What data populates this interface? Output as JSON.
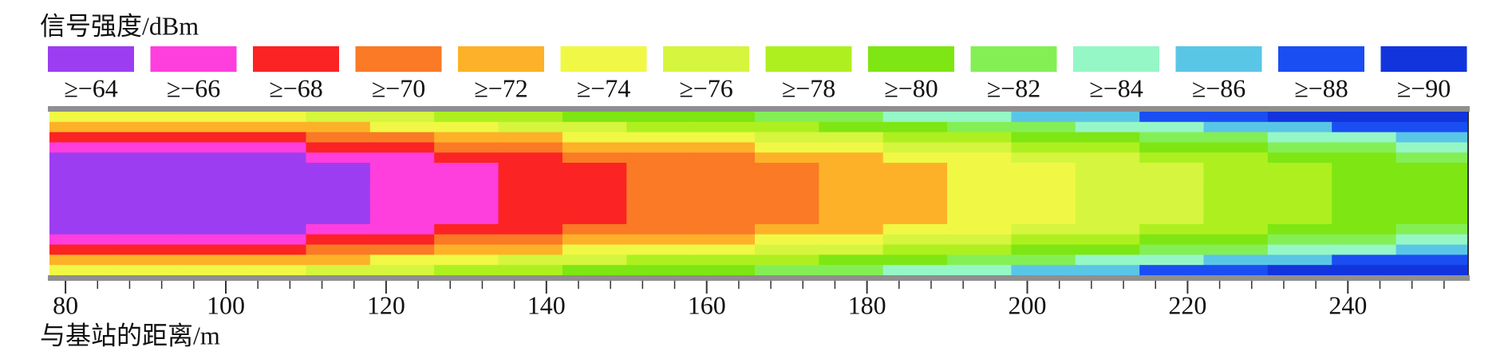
{
  "chart_data": {
    "type": "heatmap",
    "title": "信号强度/dBm",
    "xlabel": "与基站的距离/m",
    "legend": [
      {
        "value": -64,
        "label": "≥−64",
        "color": "#9d3df2"
      },
      {
        "value": -66,
        "label": "≥−66",
        "color": "#ff3ede"
      },
      {
        "value": -68,
        "label": "≥−68",
        "color": "#fb2323"
      },
      {
        "value": -70,
        "label": "≥−70",
        "color": "#fa7a25"
      },
      {
        "value": -72,
        "label": "≥−72",
        "color": "#fdb128"
      },
      {
        "value": -74,
        "label": "≥−74",
        "color": "#f0f845"
      },
      {
        "value": -76,
        "label": "≥−76",
        "color": "#d6f53e"
      },
      {
        "value": -78,
        "label": "≥−78",
        "color": "#aef01f"
      },
      {
        "value": -80,
        "label": "≥−80",
        "color": "#7ee612"
      },
      {
        "value": -82,
        "label": "≥−82",
        "color": "#84ef55"
      },
      {
        "value": -84,
        "label": "≥−84",
        "color": "#95f7c6"
      },
      {
        "value": -86,
        "label": "≥−86",
        "color": "#5ac6e6"
      },
      {
        "value": -88,
        "label": "≥−88",
        "color": "#1a4ef2"
      },
      {
        "value": -90,
        "label": "≥−90",
        "color": "#1234dc"
      }
    ],
    "x": [
      78,
      86,
      94,
      102,
      110,
      118,
      126,
      134,
      142,
      150,
      158,
      166,
      174,
      182,
      190,
      198,
      206,
      214,
      222,
      230,
      238,
      246,
      255
    ],
    "z": [
      [
        -74,
        -74,
        -74,
        -74,
        -76,
        -76,
        -78,
        -78,
        -80,
        -80,
        -80,
        -82,
        -82,
        -84,
        -84,
        -86,
        -86,
        -88,
        -88,
        -90,
        -90,
        -90
      ],
      [
        -72,
        -72,
        -72,
        -72,
        -72,
        -74,
        -74,
        -76,
        -76,
        -78,
        -78,
        -78,
        -80,
        -80,
        -82,
        -82,
        -84,
        -84,
        -86,
        -86,
        -88,
        -88
      ],
      [
        -68,
        -68,
        -68,
        -68,
        -70,
        -70,
        -72,
        -72,
        -74,
        -74,
        -74,
        -76,
        -76,
        -78,
        -78,
        -80,
        -80,
        -82,
        -82,
        -84,
        -84,
        -86
      ],
      [
        -66,
        -66,
        -66,
        -66,
        -68,
        -68,
        -70,
        -70,
        -72,
        -72,
        -72,
        -74,
        -74,
        -76,
        -76,
        -78,
        -78,
        -80,
        -80,
        -82,
        -82,
        -84
      ],
      [
        -64,
        -64,
        -64,
        -64,
        -66,
        -66,
        -68,
        -68,
        -70,
        -70,
        -70,
        -72,
        -72,
        -74,
        -74,
        -76,
        -76,
        -78,
        -78,
        -80,
        -80,
        -82
      ],
      [
        -64,
        -64,
        -64,
        -64,
        -64,
        -66,
        -66,
        -68,
        -68,
        -70,
        -70,
        -70,
        -72,
        -72,
        -74,
        -74,
        -76,
        -76,
        -78,
        -78,
        -80,
        -80
      ],
      [
        -64,
        -64,
        -64,
        -64,
        -64,
        -66,
        -66,
        -68,
        -68,
        -70,
        -70,
        -70,
        -72,
        -72,
        -74,
        -74,
        -76,
        -76,
        -78,
        -78,
        -80,
        -80
      ],
      [
        -64,
        -64,
        -64,
        -64,
        -64,
        -66,
        -66,
        -68,
        -68,
        -70,
        -70,
        -70,
        -72,
        -72,
        -74,
        -74,
        -76,
        -76,
        -78,
        -78,
        -80,
        -80
      ],
      [
        -64,
        -64,
        -64,
        -64,
        -64,
        -66,
        -66,
        -68,
        -68,
        -70,
        -70,
        -70,
        -72,
        -72,
        -74,
        -74,
        -76,
        -76,
        -78,
        -78,
        -80,
        -80
      ],
      [
        -64,
        -64,
        -64,
        -64,
        -64,
        -66,
        -66,
        -68,
        -68,
        -70,
        -70,
        -70,
        -72,
        -72,
        -74,
        -74,
        -76,
        -76,
        -78,
        -78,
        -80,
        -80
      ],
      [
        -64,
        -64,
        -64,
        -64,
        -64,
        -66,
        -66,
        -68,
        -68,
        -70,
        -70,
        -70,
        -72,
        -72,
        -74,
        -74,
        -76,
        -76,
        -78,
        -78,
        -80,
        -80
      ],
      [
        -64,
        -64,
        -64,
        -64,
        -66,
        -66,
        -68,
        -68,
        -70,
        -70,
        -70,
        -72,
        -72,
        -74,
        -74,
        -76,
        -76,
        -78,
        -78,
        -80,
        -80,
        -82
      ],
      [
        -66,
        -66,
        -66,
        -66,
        -68,
        -68,
        -70,
        -70,
        -72,
        -72,
        -72,
        -74,
        -74,
        -76,
        -76,
        -78,
        -78,
        -80,
        -80,
        -82,
        -82,
        -84
      ],
      [
        -68,
        -68,
        -68,
        -68,
        -70,
        -70,
        -72,
        -72,
        -74,
        -74,
        -74,
        -76,
        -76,
        -78,
        -78,
        -80,
        -80,
        -82,
        -82,
        -84,
        -84,
        -86
      ],
      [
        -72,
        -72,
        -72,
        -72,
        -72,
        -74,
        -74,
        -76,
        -76,
        -78,
        -78,
        -78,
        -80,
        -80,
        -82,
        -82,
        -84,
        -84,
        -86,
        -86,
        -88,
        -88
      ],
      [
        -74,
        -74,
        -74,
        -74,
        -76,
        -76,
        -78,
        -78,
        -80,
        -80,
        -80,
        -82,
        -82,
        -84,
        -84,
        -86,
        -86,
        -88,
        -88,
        -90,
        -90,
        -90
      ]
    ],
    "xlim": [
      78,
      255
    ],
    "xticks": [
      80,
      100,
      120,
      140,
      160,
      180,
      200,
      220,
      240
    ],
    "xminorticks": [
      84,
      88,
      92,
      96,
      104,
      108,
      112,
      116,
      124,
      128,
      132,
      136,
      144,
      148,
      152,
      156,
      164,
      168,
      172,
      176,
      184,
      188,
      192,
      196,
      204,
      208,
      212,
      216,
      224,
      228,
      232,
      236,
      244,
      248,
      252
    ]
  }
}
